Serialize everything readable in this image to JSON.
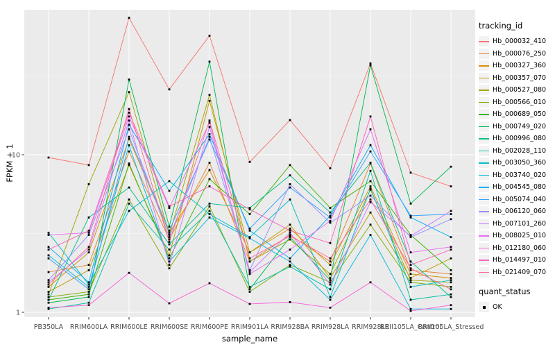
{
  "colors": {
    "panel_bg": "#EBEBEB",
    "major_grid": "#FFFFFF",
    "minor_grid": "#FFFFFF",
    "axis_text": "#4D4D4D",
    "tick_mark": "#333333",
    "point": "#000000"
  },
  "legend": {
    "tracking_title": "tracking_id",
    "quant_title": "quant_status",
    "quant_items": [
      "OK"
    ]
  },
  "chart_data": {
    "type": "line",
    "title": "",
    "xlabel": "sample_name",
    "ylabel": "FPKM + 1",
    "y_scale": "log10",
    "ylim": [
      0.93,
      83
    ],
    "y_tick_values": [
      1,
      10
    ],
    "y_tick_labels": [
      "1",
      "10"
    ],
    "y_minor_gridlines": [
      3.162,
      31.62
    ],
    "grid": true,
    "legend_position": "right",
    "point_marker": {
      "shape": "square",
      "color": "#000000",
      "legend_label": "OK"
    },
    "categories": [
      "PB350LA",
      "RRIM600LA",
      "RRIM600LE",
      "RRIM600SE",
      "RRIM600PE",
      "RRIM901LA",
      "RRIM928BA",
      "RRIM928LA",
      "RRIM928LE",
      "RRII105LA_Control",
      "RRII105LA_Stressed"
    ],
    "series": [
      {
        "name": "Hb_000032_410",
        "color": "#F8766D",
        "values": [
          9.6,
          8.6,
          74,
          26,
          57,
          9.0,
          16.6,
          8.2,
          38,
          7.7,
          6.3
        ]
      },
      {
        "name": "Hb_000076_250",
        "color": "#EA8331",
        "values": [
          1.8,
          2.0,
          10.5,
          2.9,
          8.9,
          2.1,
          3.1,
          2.1,
          8.8,
          1.85,
          1.75
        ]
      },
      {
        "name": "Hb_000327_360",
        "color": "#D89000",
        "values": [
          1.45,
          2.4,
          12.6,
          3.2,
          8.0,
          2.4,
          3.4,
          2.0,
          6.3,
          1.75,
          1.65
        ]
      },
      {
        "name": "Hb_000357_070",
        "color": "#C09B00",
        "values": [
          1.35,
          1.85,
          8.6,
          2.3,
          22,
          2.4,
          3.6,
          1.65,
          4.3,
          1.65,
          2.2
        ]
      },
      {
        "name": "Hb_000527_080",
        "color": "#A3A500",
        "values": [
          1.3,
          6.5,
          25,
          3.1,
          24,
          2.1,
          2.9,
          1.75,
          6.0,
          1.6,
          1.55
        ]
      },
      {
        "name": "Hb_000566_010",
        "color": "#7CAE00",
        "values": [
          1.25,
          1.35,
          5.2,
          1.9,
          4.7,
          1.35,
          2.0,
          1.55,
          3.6,
          1.55,
          1.45
        ]
      },
      {
        "name": "Hb_000689_050",
        "color": "#39B600",
        "values": [
          1.2,
          1.3,
          8.8,
          2.2,
          7.0,
          4.2,
          8.6,
          4.6,
          6.8,
          3.1,
          1.85
        ]
      },
      {
        "name": "Hb_000749_020",
        "color": "#00BB4E",
        "values": [
          1.15,
          1.25,
          30,
          3.5,
          39,
          1.4,
          3.0,
          1.6,
          37,
          4.9,
          8.4
        ]
      },
      {
        "name": "Hb_000996_080",
        "color": "#00C087",
        "values": [
          1.2,
          4.0,
          6.2,
          2.7,
          4.9,
          4.6,
          7.4,
          4.3,
          8.9,
          2.1,
          1.25
        ]
      },
      {
        "name": "Hb_002028_110",
        "color": "#00C1A3",
        "values": [
          1.05,
          1.15,
          4.9,
          2.5,
          4.4,
          1.45,
          1.95,
          1.4,
          7.9,
          1.2,
          1.3
        ]
      },
      {
        "name": "Hb_003050_360",
        "color": "#00BFC4",
        "values": [
          3.2,
          1.5,
          4.4,
          6.8,
          4.2,
          3.0,
          5.2,
          1.25,
          6.1,
          1.45,
          1.6
        ]
      },
      {
        "name": "Hb_003740_020",
        "color": "#00BAE0",
        "values": [
          2.3,
          1.45,
          11.5,
          2.1,
          4.0,
          2.95,
          2.1,
          1.2,
          3.1,
          1.05,
          1.05
        ]
      },
      {
        "name": "Hb_004545_080",
        "color": "#00B0F6",
        "values": [
          2.6,
          1.55,
          15.5,
          5.9,
          13.5,
          3.3,
          2.2,
          4.1,
          11.5,
          4.0,
          3.0
        ]
      },
      {
        "name": "Hb_005074_040",
        "color": "#35A2FF",
        "values": [
          2.2,
          1.4,
          13.0,
          3.3,
          12.5,
          3.4,
          6.2,
          4.0,
          10.5,
          4.1,
          4.2
        ]
      },
      {
        "name": "Hb_006120_060",
        "color": "#9590FF",
        "values": [
          1.6,
          3.1,
          14.5,
          3.0,
          13.0,
          1.85,
          6.5,
          3.7,
          5.5,
          3.0,
          3.9
        ]
      },
      {
        "name": "Hb_007101_260",
        "color": "#C77CFF",
        "values": [
          1.55,
          2.5,
          16.5,
          2.0,
          15.0,
          1.8,
          3.2,
          1.5,
          5.0,
          3.05,
          4.4
        ]
      },
      {
        "name": "Hb_008025_010",
        "color": "#E76BF3",
        "values": [
          3.1,
          3.2,
          17.5,
          4.6,
          16.0,
          1.75,
          2.5,
          3.8,
          14.5,
          2.4,
          2.6
        ]
      },
      {
        "name": "Hb_012180_060",
        "color": "#FA62DB",
        "values": [
          1.07,
          1.11,
          1.78,
          1.14,
          1.53,
          1.13,
          1.16,
          1.07,
          1.55,
          1.02,
          1.11
        ]
      },
      {
        "name": "Hb_014497_010",
        "color": "#FF62BC",
        "values": [
          2.5,
          3.3,
          18.5,
          4.7,
          6.3,
          4.5,
          3.3,
          2.75,
          17.5,
          2.0,
          2.5
        ]
      },
      {
        "name": "Hb_021409_070",
        "color": "#FF6A98",
        "values": [
          1.5,
          2.6,
          19.5,
          2.8,
          16.5,
          2.2,
          3.05,
          2.2,
          5.2,
          1.9,
          1.4
        ]
      }
    ]
  }
}
